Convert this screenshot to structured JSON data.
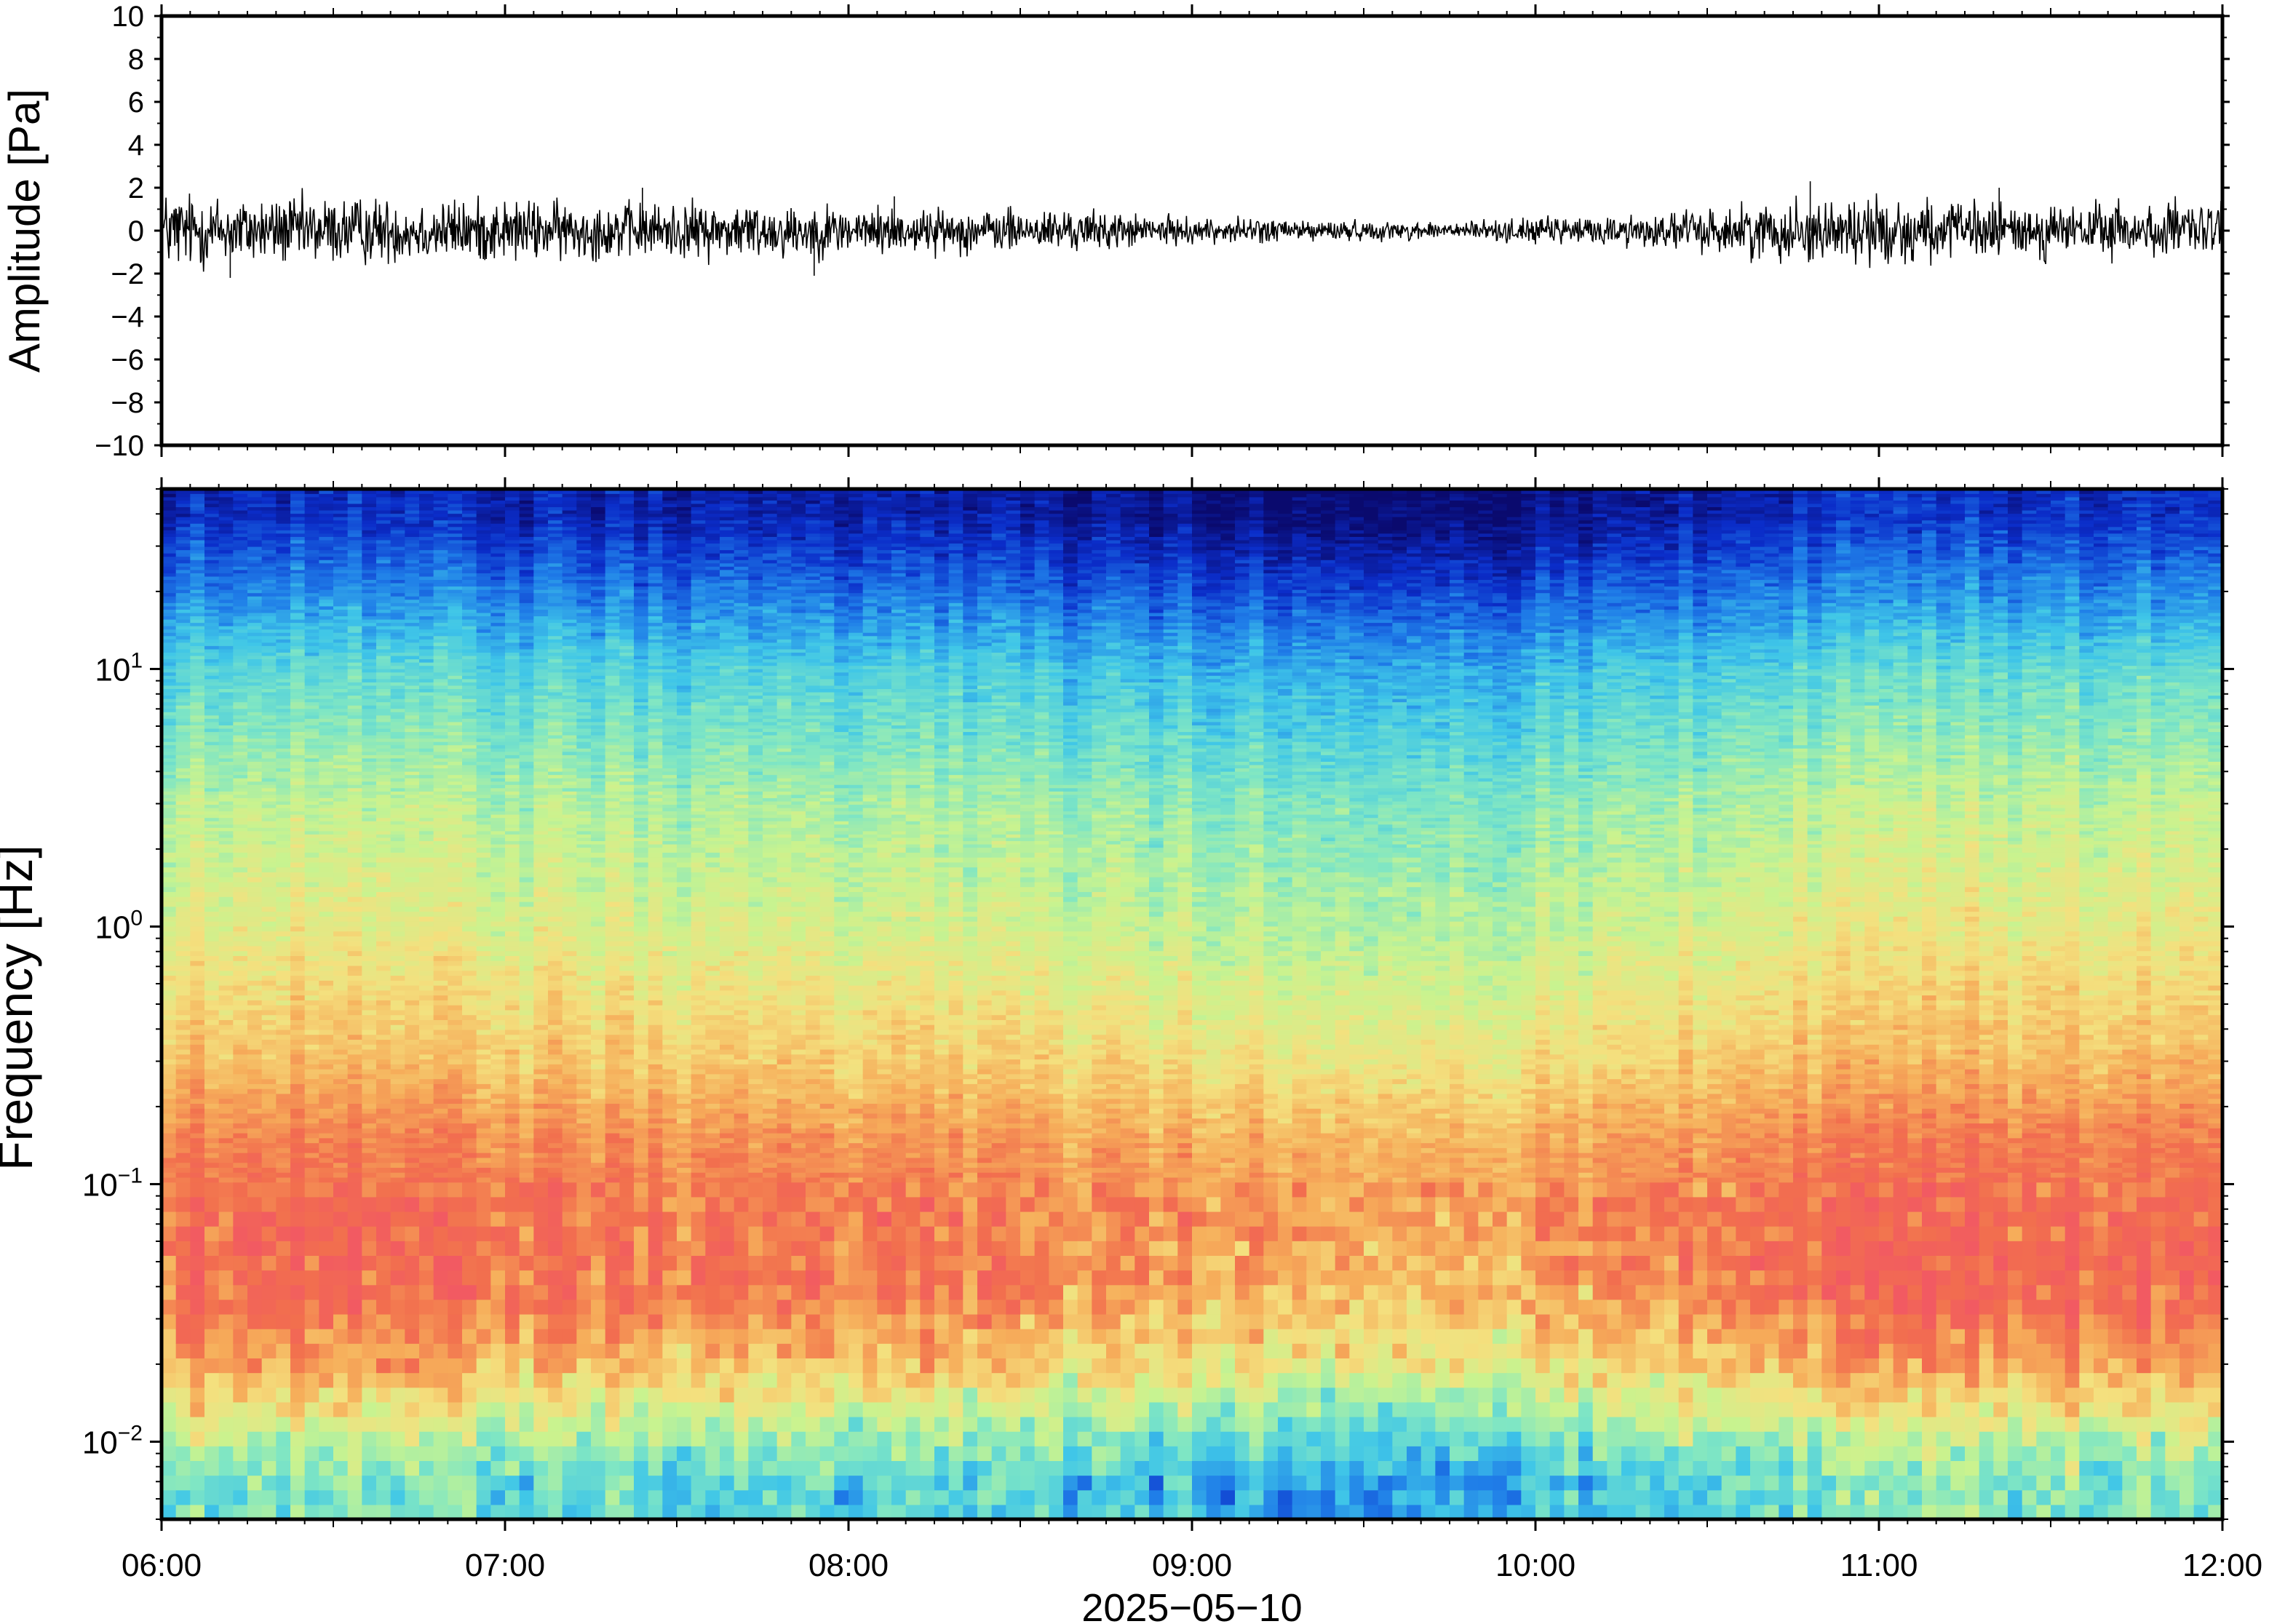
{
  "chart_data": [
    {
      "type": "line",
      "panel": "waveform",
      "ylabel": "Amplitude [Pa]",
      "ylim": [
        -10,
        10
      ],
      "y_ticks": [
        10,
        8,
        6,
        4,
        2,
        0,
        -2,
        -4,
        -6,
        -8,
        -10
      ],
      "y_tick_labels": [
        "10",
        "8",
        "6",
        "4",
        "2",
        "0",
        "−2",
        "−4",
        "−6",
        "−8",
        "−10"
      ],
      "x_range": [
        "06:00",
        "12:00"
      ],
      "envelope": {
        "x": [
          "06:00",
          "06:15",
          "06:30",
          "06:45",
          "07:00",
          "07:15",
          "07:30",
          "07:45",
          "08:00",
          "08:15",
          "08:30",
          "08:45",
          "09:00",
          "09:15",
          "09:30",
          "09:45",
          "10:00",
          "10:15",
          "10:30",
          "10:45",
          "11:00",
          "11:15",
          "11:30",
          "11:45",
          "12:00"
        ],
        "amplitude": [
          1.3,
          1.1,
          1.1,
          1.0,
          1.0,
          0.9,
          0.9,
          0.9,
          0.8,
          0.7,
          0.7,
          0.6,
          0.4,
          0.4,
          0.3,
          0.3,
          0.4,
          0.5,
          0.7,
          1.0,
          1.1,
          0.9,
          0.9,
          0.9,
          0.9
        ]
      },
      "peaks": [
        {
          "time": "06:00",
          "value": 3.4
        },
        {
          "time": "06:12",
          "value": -2.2
        },
        {
          "time": "07:24",
          "value": 2.0
        },
        {
          "time": "07:54",
          "value": -2.1
        },
        {
          "time": "08:08",
          "value": 1.6
        },
        {
          "time": "10:48",
          "value": 2.3
        },
        {
          "time": "11:21",
          "value": 2.0
        }
      ],
      "line_color": "#000000"
    },
    {
      "type": "heatmap",
      "panel": "spectrogram",
      "ylabel": "Frequency [Hz]",
      "xlabel": "2025−05−10",
      "y_scale": "log",
      "ylim": [
        0.005,
        50
      ],
      "y_ticks": [
        0.01,
        0.1,
        1,
        10
      ],
      "y_tick_labels": [
        {
          "base": "10",
          "exp": "−2"
        },
        {
          "base": "10",
          "exp": "−1"
        },
        {
          "base": "10",
          "exp": "0"
        },
        {
          "base": "10",
          "exp": "1"
        }
      ],
      "x_ticks": [
        "06:00",
        "07:00",
        "08:00",
        "09:00",
        "10:00",
        "11:00",
        "12:00"
      ],
      "colormap": [
        "#0a0a6e",
        "#0b2dc9",
        "#1f7de8",
        "#3fc6e8",
        "#7fe6c4",
        "#c9f38f",
        "#f4e07e",
        "#f6ad5a",
        "#f26f4e",
        "#f25a62"
      ],
      "spectrum_profile": {
        "frequency_hz": [
          0.007,
          0.01,
          0.02,
          0.04,
          0.08,
          0.15,
          0.3,
          0.6,
          1,
          3,
          10,
          20,
          40
        ],
        "level": [
          0.4,
          0.5,
          0.75,
          0.88,
          0.88,
          0.83,
          0.72,
          0.65,
          0.6,
          0.52,
          0.37,
          0.22,
          0.08
        ]
      },
      "time_activity": {
        "time": [
          "06:00",
          "06:30",
          "07:00",
          "07:30",
          "08:00",
          "08:30",
          "09:00",
          "09:30",
          "10:00",
          "10:30",
          "11:00",
          "11:30",
          "12:00"
        ],
        "level_offset": [
          0.02,
          0.02,
          0.01,
          0.0,
          0.0,
          -0.01,
          -0.05,
          -0.08,
          -0.06,
          0.0,
          0.03,
          0.02,
          0.02
        ]
      }
    }
  ]
}
